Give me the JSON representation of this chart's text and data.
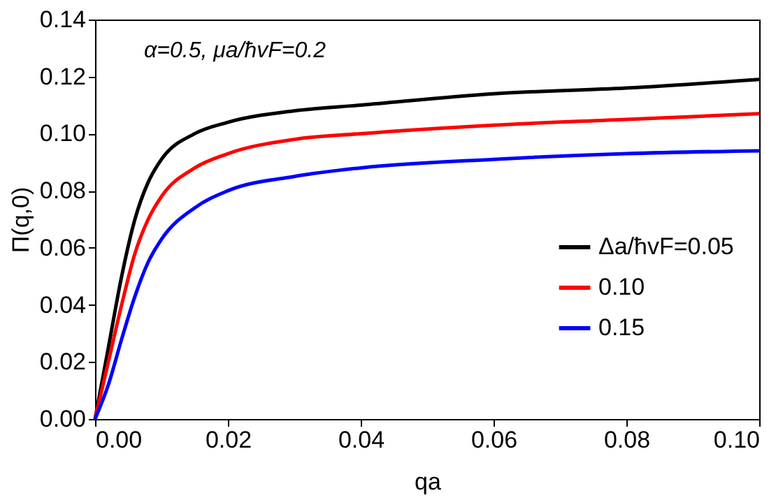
{
  "chart_data": {
    "type": "line",
    "xlabel": "qa",
    "ylabel": "Π(q,0)",
    "legend": "right",
    "grid": false,
    "marker": "none",
    "line_style": "solid",
    "annotations": [
      "α=0.5, μa/ħvF=0.2"
    ],
    "x": [
      0,
      0.002,
      0.004,
      0.006,
      0.008,
      0.01,
      0.015,
      0.02,
      0.03,
      0.04,
      0.06,
      0.08,
      0.1
    ],
    "xlim": [
      0,
      0.1
    ],
    "ylim": [
      0,
      0.14
    ],
    "xticks": [
      {
        "value": 0,
        "label": "0.00"
      },
      {
        "value": 0.02,
        "label": "0.02"
      },
      {
        "value": 0.04,
        "label": "0.04"
      },
      {
        "value": 0.06,
        "label": "0.06"
      },
      {
        "value": 0.08,
        "label": "0.08"
      },
      {
        "value": 0.1,
        "label": "0.10"
      }
    ],
    "yticks": [
      {
        "value": 0,
        "label": "0.00"
      },
      {
        "value": 0.02,
        "label": "0.02"
      },
      {
        "value": 0.04,
        "label": "0.04"
      },
      {
        "value": 0.06,
        "label": "0.06"
      },
      {
        "value": 0.08,
        "label": "0.08"
      },
      {
        "value": 0.1,
        "label": "0.10"
      },
      {
        "value": 0.12,
        "label": "0.12"
      },
      {
        "value": 0.14,
        "label": "0.14"
      }
    ],
    "series": [
      {
        "name": "Δa/ħvF=0.05",
        "color": "#000000",
        "values": [
          0,
          0.025,
          0.05,
          0.07,
          0.083,
          0.091,
          0.1,
          0.104,
          0.108,
          0.11,
          0.114,
          0.116,
          0.119
        ]
      },
      {
        "name": "0.10",
        "color": "#ff0000",
        "values": [
          0,
          0.02,
          0.04,
          0.058,
          0.07,
          0.078,
          0.088,
          0.093,
          0.098,
          0.1,
          0.103,
          0.105,
          0.107
        ]
      },
      {
        "name": "0.15",
        "color": "#0000ff",
        "values": [
          0,
          0.012,
          0.028,
          0.043,
          0.055,
          0.063,
          0.074,
          0.08,
          0.085,
          0.088,
          0.091,
          0.093,
          0.094
        ]
      }
    ]
  }
}
